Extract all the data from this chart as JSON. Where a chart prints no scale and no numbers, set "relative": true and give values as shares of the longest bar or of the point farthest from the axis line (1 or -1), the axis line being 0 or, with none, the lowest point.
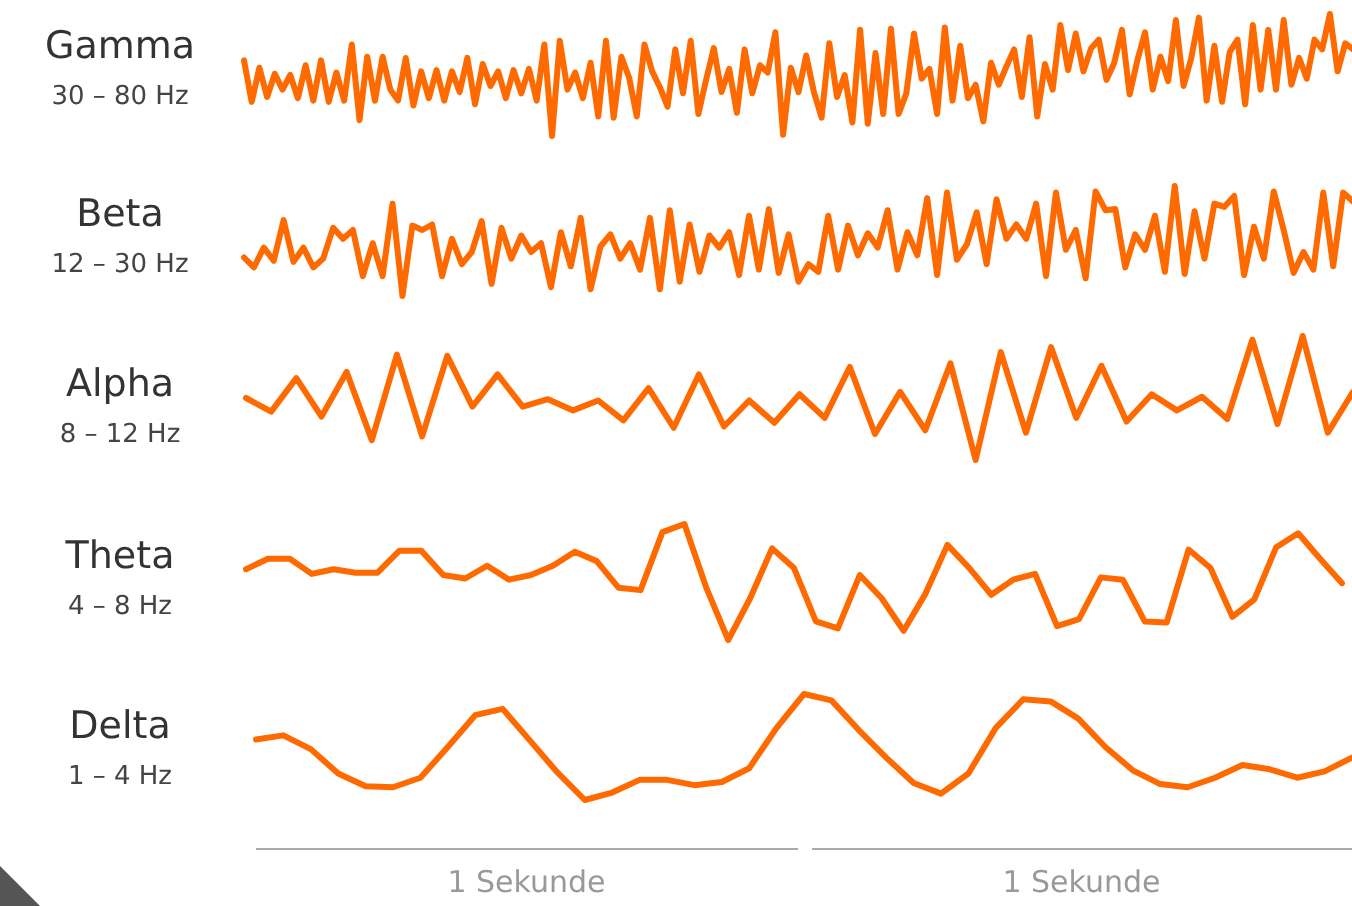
{
  "chart_data": [
    {
      "type": "line",
      "title": "Gamma",
      "subtitle": "30 – 80 Hz",
      "relative": true,
      "tick_labels": false,
      "marker": "none",
      "line_style": "solid",
      "color": "#ff6a00",
      "categories": [
        null,
        null,
        null,
        null,
        null,
        null,
        null,
        null,
        null,
        null,
        null,
        null,
        null,
        null,
        null,
        null,
        null,
        null,
        null,
        null,
        null,
        null,
        null,
        null,
        null,
        null,
        null,
        null,
        null,
        null,
        null,
        null,
        null,
        null,
        null,
        null,
        null,
        null,
        null,
        null,
        null,
        null,
        null,
        null,
        null,
        null,
        null,
        null,
        null,
        null,
        null,
        null,
        null,
        null,
        null,
        null,
        null,
        null,
        null,
        null,
        null,
        null,
        null,
        null,
        null,
        null,
        null,
        null,
        null,
        null,
        null,
        null,
        null,
        null,
        null,
        null,
        null,
        null,
        null,
        null,
        null,
        null,
        null,
        null,
        null,
        null,
        null,
        null,
        null,
        null,
        null,
        null,
        null,
        null,
        null,
        null,
        null,
        null,
        null,
        null,
        null,
        null,
        null,
        null,
        null,
        null,
        null,
        null,
        null,
        null,
        null,
        null,
        null,
        null,
        null,
        null,
        null,
        null,
        null,
        null,
        null,
        null,
        null,
        null,
        null,
        null,
        null,
        null,
        null,
        null,
        null,
        null,
        null,
        null,
        null,
        null,
        null,
        null,
        null,
        null,
        null,
        null,
        null,
        null,
        null
      ],
      "values": [
        0.62,
        0.28,
        0.56,
        0.32,
        0.51,
        0.38,
        0.5,
        0.31,
        0.58,
        0.29,
        0.62,
        0.28,
        0.52,
        0.29,
        0.75,
        0.13,
        0.65,
        0.29,
        0.65,
        0.38,
        0.29,
        0.64,
        0.25,
        0.53,
        0.31,
        0.54,
        0.29,
        0.53,
        0.36,
        0.64,
        0.26,
        0.59,
        0.41,
        0.53,
        0.31,
        0.54,
        0.35,
        0.55,
        0.29,
        0.75,
        0,
        0.78,
        0.38,
        0.52,
        0.31,
        0.6,
        0.16,
        0.78,
        0.15,
        0.65,
        0.48,
        0.16,
        0.75,
        0.53,
        0.4,
        0.24,
        0.71,
        0.35,
        0.78,
        0.18,
        0.46,
        0.72,
        0.36,
        0.55,
        0.19,
        0.71,
        0.35,
        0.58,
        0.52,
        0.85,
        0.01,
        0.56,
        0.36,
        0.66,
        0.36,
        0.15,
        0.76,
        0.32,
        0.5,
        0.11,
        0.87,
        0.1,
        0.68,
        0.18,
        0.88,
        0.18,
        0.35,
        0.84,
        0.47,
        0.55,
        0.18,
        0.89,
        0.29,
        0.74,
        0.31,
        0.42,
        0.12,
        0.6,
        0.42,
        0.57,
        0.71,
        0.32,
        0.81,
        0.16,
        0.59,
        0.38,
        0.91,
        0.54,
        0.84,
        0.53,
        0.72,
        0.79,
        0.46,
        0.6,
        0.87,
        0.34,
        0.62,
        0.85,
        0.38,
        0.65,
        0.45,
        0.95,
        0.41,
        0.64,
        0.97,
        0.29,
        0.74,
        0.28,
        0.69,
        0.79,
        0.26,
        0.91,
        0.38,
        0.87,
        0.38,
        0.95,
        0.42,
        0.64,
        0.47,
        0.79,
        0.71,
        1.0,
        0.53,
        0.76,
        0.71
      ]
    },
    {
      "type": "line",
      "title": "Beta",
      "subtitle": "12 – 30 Hz",
      "relative": true,
      "tick_labels": false,
      "marker": "none",
      "line_style": "solid",
      "color": "#ff6a00",
      "categories": [
        null,
        null,
        null,
        null,
        null,
        null,
        null,
        null,
        null,
        null,
        null,
        null,
        null,
        null,
        null,
        null,
        null,
        null,
        null,
        null,
        null,
        null,
        null,
        null,
        null,
        null,
        null,
        null,
        null,
        null,
        null,
        null,
        null,
        null,
        null,
        null,
        null,
        null,
        null,
        null,
        null,
        null,
        null,
        null,
        null,
        null,
        null,
        null,
        null,
        null,
        null,
        null,
        null,
        null,
        null,
        null,
        null,
        null,
        null,
        null,
        null,
        null,
        null,
        null,
        null,
        null,
        null,
        null,
        null,
        null,
        null,
        null,
        null,
        null,
        null,
        null,
        null,
        null,
        null,
        null,
        null,
        null,
        null,
        null,
        null,
        null,
        null,
        null,
        null,
        null,
        null,
        null,
        null,
        null,
        null,
        null,
        null,
        null,
        null,
        null,
        null,
        null,
        null,
        null,
        null,
        null,
        null,
        null,
        null,
        null,
        null,
        null,
        null
      ],
      "values": [
        0.35,
        0.26,
        0.44,
        0.32,
        0.69,
        0.31,
        0.44,
        0.26,
        0.34,
        0.62,
        0.52,
        0.6,
        0.18,
        0.48,
        0.18,
        0.84,
        0,
        0.64,
        0.6,
        0.65,
        0.18,
        0.52,
        0.29,
        0.4,
        0.68,
        0.11,
        0.62,
        0.34,
        0.55,
        0.4,
        0.48,
        0.08,
        0.58,
        0.27,
        0.71,
        0.06,
        0.45,
        0.56,
        0.34,
        0.48,
        0.24,
        0.71,
        0.06,
        0.78,
        0.13,
        0.65,
        0.22,
        0.55,
        0.44,
        0.58,
        0.19,
        0.73,
        0.24,
        0.79,
        0.21,
        0.56,
        0.13,
        0.29,
        0.22,
        0.73,
        0.24,
        0.64,
        0.37,
        0.57,
        0.44,
        0.78,
        0.24,
        0.58,
        0.37,
        0.89,
        0.19,
        0.94,
        0.33,
        0.47,
        0.76,
        0.29,
        0.88,
        0.52,
        0.65,
        0.52,
        0.84,
        0.18,
        0.94,
        0.42,
        0.6,
        0.16,
        0.95,
        0.78,
        0.79,
        0.26,
        0.56,
        0.42,
        0.73,
        0.22,
        1.0,
        0.2,
        0.77,
        0.34,
        0.84,
        0.81,
        0.91,
        0.19,
        0.63,
        0.34,
        0.95,
        0.6,
        0.21,
        0.4,
        0.24,
        0.94,
        0.27,
        0.94,
        0.86
      ]
    },
    {
      "type": "line",
      "title": "Alpha",
      "subtitle": "8 – 12 Hz",
      "relative": true,
      "tick_labels": false,
      "marker": "none",
      "line_style": "solid",
      "color": "#ff6a00",
      "categories": [
        null,
        null,
        null,
        null,
        null,
        null,
        null,
        null,
        null,
        null,
        null,
        null,
        null,
        null,
        null,
        null,
        null,
        null,
        null,
        null,
        null,
        null,
        null,
        null,
        null,
        null,
        null,
        null,
        null,
        null,
        null,
        null,
        null,
        null,
        null,
        null,
        null,
        null,
        null,
        null,
        null,
        null,
        null,
        null,
        null
      ],
      "values": [
        0.5,
        0.39,
        0.66,
        0.35,
        0.71,
        0.16,
        0.85,
        0.19,
        0.84,
        0.43,
        0.69,
        0.43,
        0.49,
        0.4,
        0.48,
        0.32,
        0.58,
        0.26,
        0.69,
        0.27,
        0.48,
        0.3,
        0.53,
        0.34,
        0.75,
        0.21,
        0.55,
        0.24,
        0.78,
        0,
        0.87,
        0.22,
        0.91,
        0.34,
        0.76,
        0.31,
        0.53,
        0.4,
        0.51,
        0.33,
        0.97,
        0.29,
        1.0,
        0.22,
        0.55
      ]
    },
    {
      "type": "line",
      "title": "Theta",
      "subtitle": "4 – 8 Hz",
      "relative": true,
      "tick_labels": false,
      "marker": "none",
      "line_style": "solid",
      "color": "#ff6a00",
      "categories": [
        null,
        null,
        null,
        null,
        null,
        null,
        null,
        null,
        null,
        null,
        null,
        null,
        null,
        null,
        null,
        null,
        null,
        null,
        null,
        null,
        null,
        null,
        null,
        null,
        null,
        null,
        null,
        null,
        null,
        null,
        null,
        null,
        null,
        null,
        null,
        null,
        null,
        null,
        null,
        null,
        null,
        null,
        null,
        null,
        null,
        null,
        null,
        null,
        null,
        null,
        null
      ],
      "values": [
        0.61,
        0.7,
        0.7,
        0.57,
        0.61,
        0.58,
        0.58,
        0.77,
        0.77,
        0.56,
        0.53,
        0.64,
        0.52,
        0.56,
        0.64,
        0.76,
        0.68,
        0.45,
        0.43,
        0.93,
        1.0,
        0.45,
        0,
        0.36,
        0.79,
        0.62,
        0.16,
        0.1,
        0.56,
        0.36,
        0.08,
        0.4,
        0.82,
        0.62,
        0.39,
        0.52,
        0.57,
        0.12,
        0.18,
        0.54,
        0.52,
        0.16,
        0.15,
        0.78,
        0.62,
        0.2,
        0.35,
        0.8,
        0.92,
        0.7,
        0.49
      ]
    },
    {
      "type": "line",
      "title": "Delta",
      "subtitle": "1 – 4 Hz",
      "relative": true,
      "tick_labels": false,
      "marker": "none",
      "line_style": "solid",
      "color": "#ff6a00",
      "categories": [
        null,
        null,
        null,
        null,
        null,
        null,
        null,
        null,
        null,
        null,
        null,
        null,
        null,
        null,
        null,
        null,
        null,
        null,
        null,
        null,
        null,
        null,
        null,
        null,
        null,
        null,
        null,
        null,
        null,
        null,
        null,
        null,
        null,
        null,
        null,
        null,
        null,
        null,
        null,
        null,
        null
      ],
      "values": [
        0.57,
        0.61,
        0.48,
        0.25,
        0.13,
        0.12,
        0.21,
        0.5,
        0.8,
        0.86,
        0.56,
        0.26,
        0,
        0.07,
        0.19,
        0.19,
        0.14,
        0.17,
        0.3,
        0.68,
        1.0,
        0.94,
        0.66,
        0.4,
        0.16,
        0.06,
        0.25,
        0.68,
        0.95,
        0.93,
        0.77,
        0.5,
        0.28,
        0.15,
        0.12,
        0.21,
        0.33,
        0.29,
        0.21,
        0.27,
        0.4
      ],
      "annotations": [
        "1 Sekunde",
        "1 Sekunde"
      ]
    }
  ]
}
